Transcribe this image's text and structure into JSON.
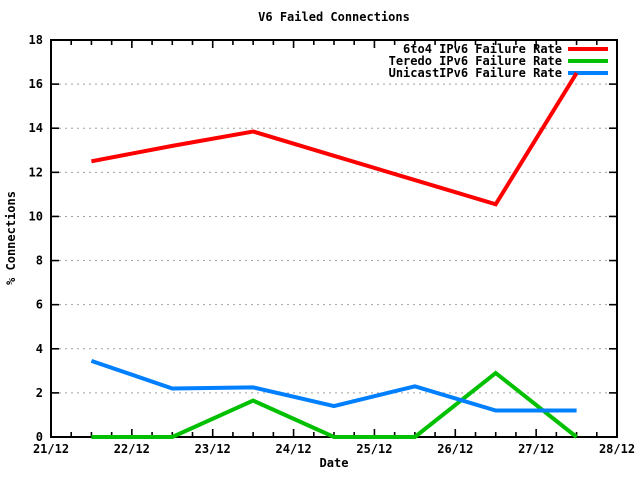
{
  "chart_data": {
    "type": "line",
    "title": "V6 Failed Connections",
    "xlabel": "Date",
    "ylabel": "% Connections",
    "xlim": [
      21,
      28
    ],
    "ylim": [
      0,
      18
    ],
    "x_unit": "day of December, points plotted at midday",
    "x": [
      21.5,
      22.5,
      23.5,
      24.5,
      25.5,
      26.5,
      27.5
    ],
    "series": [
      {
        "name": "6to4 IPv6 Failure Rate",
        "color": "#ff0000",
        "values": [
          12.5,
          13.2,
          13.85,
          12.75,
          11.65,
          10.55,
          16.5
        ]
      },
      {
        "name": "Teredo IPv6 Failure Rate",
        "color": "#00c000",
        "values": [
          0,
          0,
          1.65,
          0,
          0,
          2.9,
          0
        ]
      },
      {
        "name": "UnicastIPv6 Failure Rate",
        "color": "#0080ff",
        "values": [
          3.45,
          2.2,
          2.25,
          1.4,
          2.3,
          1.2,
          1.2
        ]
      }
    ],
    "xticks": [
      21,
      22,
      23,
      24,
      25,
      26,
      27,
      28
    ],
    "xtick_labels": [
      "21/12",
      "22/12",
      "23/12",
      "24/12",
      "25/12",
      "26/12",
      "27/12",
      "28/12"
    ],
    "x_minor_tick_step": 0.25,
    "yticks": [
      0,
      2,
      4,
      6,
      8,
      10,
      12,
      14,
      16,
      18
    ],
    "grid": "horizontal dotted lines at major y ticks",
    "legend_position": "top-right inside plot",
    "colors": {
      "axis": "#000000",
      "grid": "#a0a0a0",
      "text": "#000000",
      "background": "#ffffff"
    }
  }
}
